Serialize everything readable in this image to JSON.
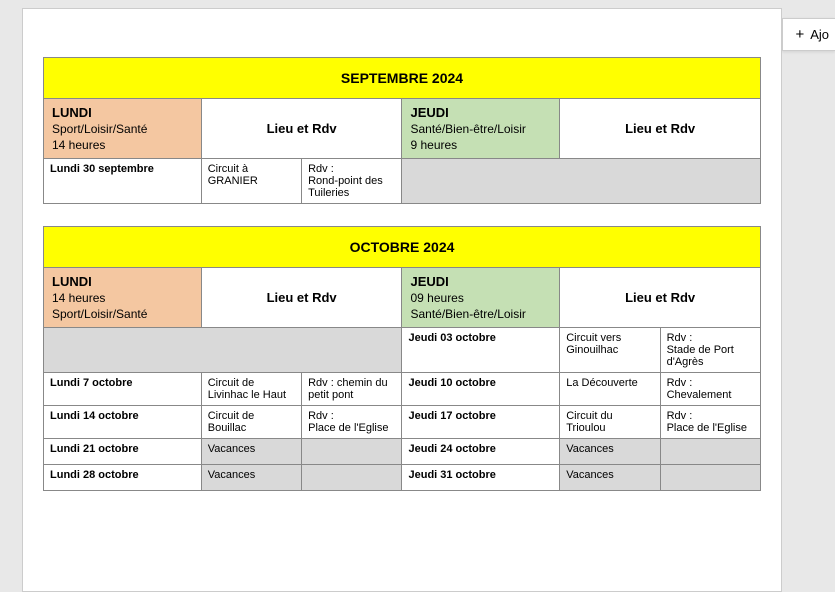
{
  "add_btn": {
    "plus": "+",
    "label": "Ajo"
  },
  "sept": {
    "month": "SEPTEMBRE 2024",
    "lundi": {
      "title": "LUNDI",
      "line2": "Sport/Loisir/Santé",
      "line3": "14 heures"
    },
    "lieu1": "Lieu et Rdv",
    "jeudi": {
      "title": "JEUDI",
      "line2": "Santé/Bien-être/Loisir",
      "line3": "9 heures"
    },
    "lieu2": "Lieu et Rdv",
    "rows": [
      {
        "d1": "Lundi 30 septembre",
        "c1": "Circuit à GRANIER",
        "r1": "Rdv :\nRond-point des Tuileries",
        "d2": "",
        "c2": "",
        "r2": "",
        "greyRight": true
      }
    ]
  },
  "oct": {
    "month": "OCTOBRE 2024",
    "lundi": {
      "title": "LUNDI",
      "line2": "14 heures",
      "line3": "Sport/Loisir/Santé"
    },
    "lieu1": "Lieu et Rdv",
    "jeudi": {
      "title": "JEUDI",
      "line2": "09 heures",
      "line3": "Santé/Bien-être/Loisir"
    },
    "lieu2": "Lieu et Rdv",
    "rows": [
      {
        "mergeLeft": true,
        "d2": "Jeudi 03 octobre",
        "c2": "Circuit vers Ginouilhac",
        "r2": "Rdv :\nStade de Port d'Agrès"
      },
      {
        "d1": "Lundi 7 octobre",
        "c1": "Circuit de Livinhac le Haut",
        "r1": "Rdv : chemin du petit pont",
        "d2": "Jeudi 10 octobre",
        "c2": "La Découverte",
        "r2": "Rdv :\nChevalement"
      },
      {
        "d1": "Lundi 14 octobre",
        "c1": "Circuit de Bouillac",
        "r1": "Rdv :\nPlace de l'Eglise",
        "d2": "Jeudi 17 octobre",
        "c2": "Circuit du Trioulou",
        "r2": "Rdv :\nPlace de l'Eglise"
      },
      {
        "d1": "Lundi 21 octobre",
        "c1": "Vacances",
        "r1": "",
        "d2": "Jeudi 24 octobre",
        "c2": "Vacances",
        "r2": "",
        "greyC1": true,
        "greyC2": true
      },
      {
        "d1": "Lundi 28 octobre",
        "c1": "Vacances",
        "r1": "",
        "d2": "Jeudi 31 octobre",
        "c2": "Vacances",
        "r2": "",
        "greyC1": true,
        "greyC2": true
      }
    ]
  }
}
